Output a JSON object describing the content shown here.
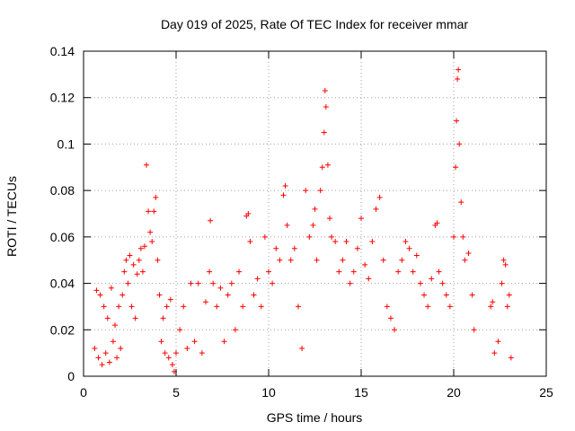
{
  "chart_data": {
    "type": "scatter",
    "title": "Day 019 of 2025, Rate Of TEC Index for receiver mmar",
    "xlabel": "GPS time / hours",
    "ylabel": "ROTI / TECUs",
    "xlim": [
      0,
      25
    ],
    "ylim": [
      0,
      0.14
    ],
    "x_ticks": [
      0,
      5,
      10,
      15,
      20,
      25
    ],
    "x_tick_labels": [
      "0",
      "5",
      "10",
      "15",
      "20",
      "25"
    ],
    "y_ticks": [
      0,
      0.02,
      0.04,
      0.06,
      0.08,
      0.1,
      0.12,
      0.14
    ],
    "y_tick_labels": [
      "0",
      "0.02",
      "0.04",
      "0.06",
      "0.08",
      "0.1",
      "0.12",
      "0.14"
    ],
    "grid": true,
    "marker": "plus",
    "marker_color": "#ff0000",
    "series": [
      {
        "name": "ROTI",
        "points": [
          [
            0.6,
            0.012
          ],
          [
            0.7,
            0.037
          ],
          [
            0.8,
            0.008
          ],
          [
            0.9,
            0.035
          ],
          [
            1.0,
            0.005
          ],
          [
            1.1,
            0.03
          ],
          [
            1.2,
            0.01
          ],
          [
            1.3,
            0.025
          ],
          [
            1.4,
            0.006
          ],
          [
            1.5,
            0.038
          ],
          [
            1.6,
            0.015
          ],
          [
            1.7,
            0.022
          ],
          [
            1.8,
            0.008
          ],
          [
            1.9,
            0.03
          ],
          [
            2.0,
            0.012
          ],
          [
            2.1,
            0.035
          ],
          [
            2.2,
            0.045
          ],
          [
            2.3,
            0.05
          ],
          [
            2.4,
            0.04
          ],
          [
            2.5,
            0.052
          ],
          [
            2.6,
            0.03
          ],
          [
            2.7,
            0.048
          ],
          [
            2.8,
            0.025
          ],
          [
            2.9,
            0.044
          ],
          [
            3.0,
            0.05
          ],
          [
            3.1,
            0.055
          ],
          [
            3.2,
            0.045
          ],
          [
            3.3,
            0.056
          ],
          [
            3.4,
            0.091
          ],
          [
            3.5,
            0.071
          ],
          [
            3.6,
            0.062
          ],
          [
            3.7,
            0.058
          ],
          [
            3.8,
            0.071
          ],
          [
            3.9,
            0.077
          ],
          [
            4.0,
            0.05
          ],
          [
            4.1,
            0.035
          ],
          [
            4.2,
            0.015
          ],
          [
            4.3,
            0.025
          ],
          [
            4.4,
            0.01
          ],
          [
            4.5,
            0.03
          ],
          [
            4.6,
            0.008
          ],
          [
            4.7,
            0.033
          ],
          [
            4.8,
            0.005
          ],
          [
            4.9,
            0.002
          ],
          [
            5.0,
            0.01
          ],
          [
            5.2,
            0.02
          ],
          [
            5.4,
            0.03
          ],
          [
            5.6,
            0.012
          ],
          [
            5.8,
            0.04
          ],
          [
            6.0,
            0.015
          ],
          [
            6.2,
            0.04
          ],
          [
            6.4,
            0.01
          ],
          [
            6.6,
            0.032
          ],
          [
            6.8,
            0.045
          ],
          [
            6.85,
            0.067
          ],
          [
            7.0,
            0.04
          ],
          [
            7.2,
            0.03
          ],
          [
            7.4,
            0.038
          ],
          [
            7.6,
            0.015
          ],
          [
            7.8,
            0.035
          ],
          [
            8.0,
            0.04
          ],
          [
            8.2,
            0.02
          ],
          [
            8.4,
            0.045
          ],
          [
            8.6,
            0.03
          ],
          [
            8.8,
            0.069
          ],
          [
            8.9,
            0.07
          ],
          [
            9.0,
            0.058
          ],
          [
            9.2,
            0.035
          ],
          [
            9.4,
            0.042
          ],
          [
            9.6,
            0.03
          ],
          [
            9.8,
            0.06
          ],
          [
            10.0,
            0.045
          ],
          [
            10.2,
            0.04
          ],
          [
            10.4,
            0.055
          ],
          [
            10.6,
            0.05
          ],
          [
            10.8,
            0.078
          ],
          [
            10.9,
            0.082
          ],
          [
            11.0,
            0.065
          ],
          [
            11.2,
            0.05
          ],
          [
            11.4,
            0.055
          ],
          [
            11.6,
            0.03
          ],
          [
            11.8,
            0.012
          ],
          [
            12.0,
            0.08
          ],
          [
            12.2,
            0.06
          ],
          [
            12.4,
            0.065
          ],
          [
            12.5,
            0.072
          ],
          [
            12.6,
            0.05
          ],
          [
            12.8,
            0.08
          ],
          [
            12.9,
            0.09
          ],
          [
            13.0,
            0.105
          ],
          [
            13.05,
            0.123
          ],
          [
            13.1,
            0.116
          ],
          [
            13.2,
            0.091
          ],
          [
            13.3,
            0.068
          ],
          [
            13.4,
            0.06
          ],
          [
            13.6,
            0.058
          ],
          [
            13.8,
            0.045
          ],
          [
            14.0,
            0.05
          ],
          [
            14.2,
            0.058
          ],
          [
            14.4,
            0.04
          ],
          [
            14.6,
            0.045
          ],
          [
            14.8,
            0.055
          ],
          [
            15.0,
            0.068
          ],
          [
            15.2,
            0.048
          ],
          [
            15.4,
            0.042
          ],
          [
            15.6,
            0.058
          ],
          [
            15.8,
            0.072
          ],
          [
            16.0,
            0.077
          ],
          [
            16.2,
            0.05
          ],
          [
            16.4,
            0.03
          ],
          [
            16.6,
            0.025
          ],
          [
            16.8,
            0.02
          ],
          [
            17.0,
            0.045
          ],
          [
            17.2,
            0.05
          ],
          [
            17.4,
            0.058
          ],
          [
            17.6,
            0.055
          ],
          [
            17.8,
            0.045
          ],
          [
            18.0,
            0.052
          ],
          [
            18.2,
            0.04
          ],
          [
            18.4,
            0.035
          ],
          [
            18.6,
            0.03
          ],
          [
            18.8,
            0.042
          ],
          [
            19.0,
            0.065
          ],
          [
            19.1,
            0.066
          ],
          [
            19.2,
            0.045
          ],
          [
            19.4,
            0.04
          ],
          [
            19.6,
            0.035
          ],
          [
            19.8,
            0.03
          ],
          [
            20.0,
            0.06
          ],
          [
            20.1,
            0.09
          ],
          [
            20.15,
            0.11
          ],
          [
            20.2,
            0.128
          ],
          [
            20.25,
            0.132
          ],
          [
            20.3,
            0.1
          ],
          [
            20.4,
            0.075
          ],
          [
            20.5,
            0.06
          ],
          [
            20.6,
            0.05
          ],
          [
            20.8,
            0.053
          ],
          [
            21.0,
            0.035
          ],
          [
            21.1,
            0.02
          ],
          [
            22.0,
            0.03
          ],
          [
            22.1,
            0.032
          ],
          [
            22.2,
            0.01
          ],
          [
            22.4,
            0.015
          ],
          [
            22.6,
            0.04
          ],
          [
            22.7,
            0.05
          ],
          [
            22.8,
            0.048
          ],
          [
            22.9,
            0.03
          ],
          [
            23.0,
            0.035
          ],
          [
            23.1,
            0.008
          ]
        ]
      }
    ]
  }
}
